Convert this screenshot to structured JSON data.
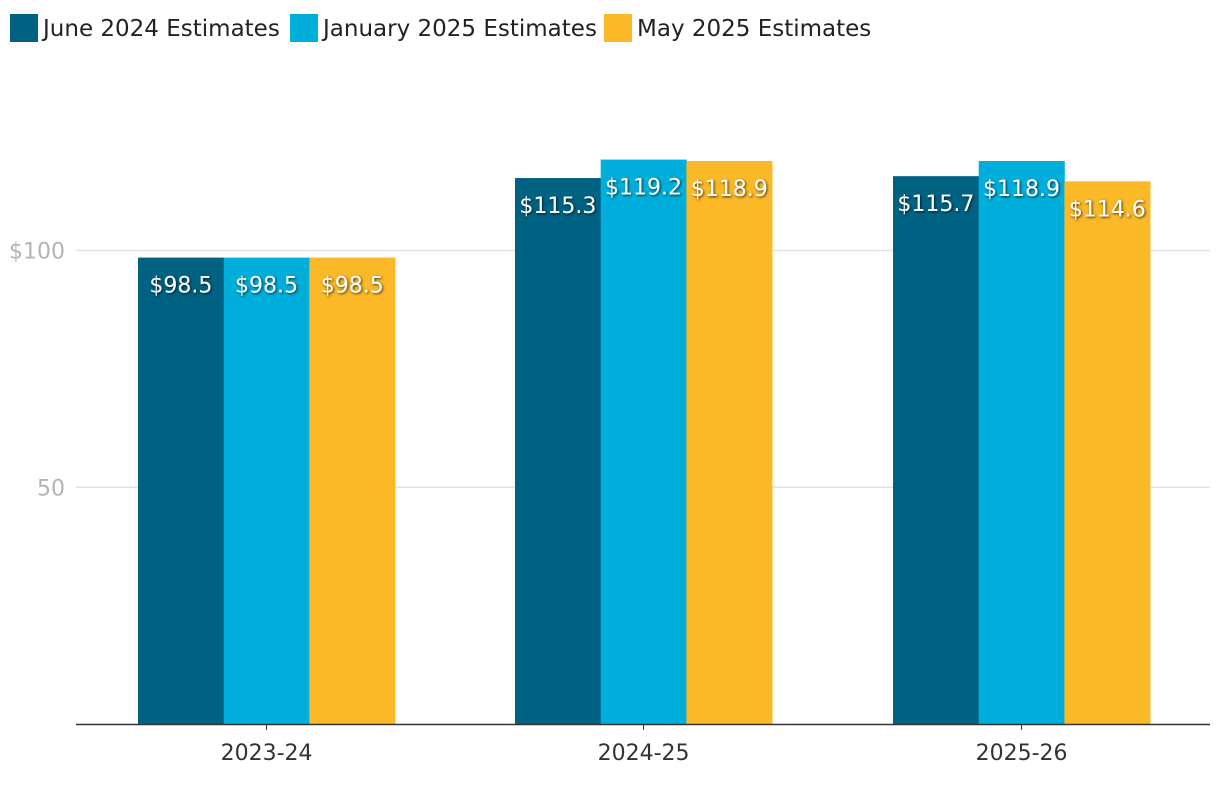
{
  "chart_data": {
    "type": "bar",
    "title": "",
    "xlabel": "",
    "ylabel": "",
    "categories": [
      "2023-24",
      "2024-25",
      "2025-26"
    ],
    "series": [
      {
        "name": "June 2024 Estimates",
        "color": "#006283",
        "values": [
          98.5,
          115.3,
          115.7
        ],
        "labels": [
          "$98.5",
          "$115.3",
          "$115.7"
        ]
      },
      {
        "name": "January 2025 Estimates",
        "color": "#00aedb",
        "values": [
          98.5,
          119.2,
          118.9
        ],
        "labels": [
          "$98.5",
          "$119.2",
          "$118.9"
        ]
      },
      {
        "name": "May 2025 Estimates",
        "color": "#fbb827",
        "values": [
          98.5,
          118.9,
          114.6
        ],
        "labels": [
          "$98.5",
          "$118.9",
          "$114.6"
        ]
      }
    ],
    "ylim": [
      0,
      140
    ],
    "yticks": [
      {
        "value": 50,
        "label": "50"
      },
      {
        "value": 100,
        "label": "$100"
      }
    ],
    "grid": true,
    "legend": "top-left"
  }
}
